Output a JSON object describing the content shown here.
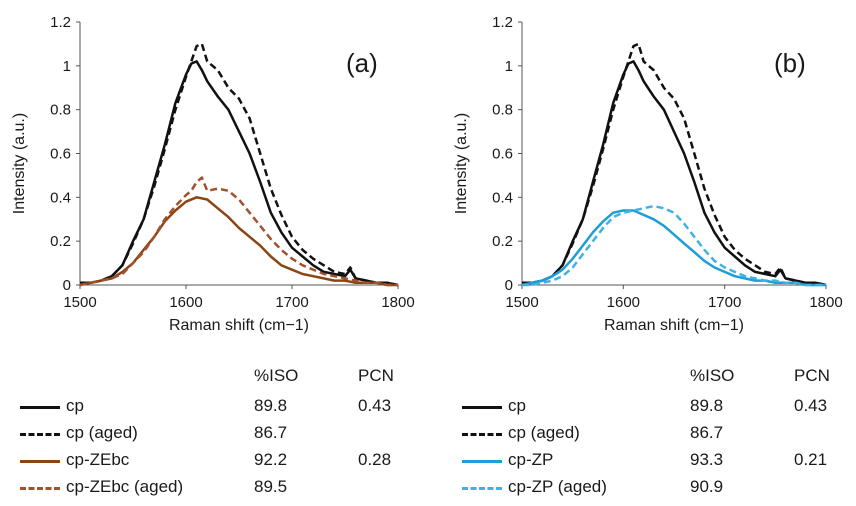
{
  "chart_data": [
    {
      "type": "line",
      "panel_label": "(a)",
      "xlabel": "Raman shift (cm−1)",
      "ylabel": "Intensity (a.u.)",
      "xlim": [
        1500,
        1800
      ],
      "ylim": [
        0,
        1.2
      ],
      "xticks": [
        1500,
        1600,
        1700,
        1800
      ],
      "yticks": [
        0,
        0.2,
        0.4,
        0.6,
        0.8,
        1,
        1.2
      ],
      "grid": false,
      "series": [
        {
          "name": "cp",
          "color": "#111111",
          "dash": "solid",
          "x": [
            1500,
            1510,
            1520,
            1530,
            1540,
            1550,
            1560,
            1570,
            1580,
            1590,
            1600,
            1605,
            1610,
            1615,
            1620,
            1630,
            1640,
            1650,
            1660,
            1670,
            1680,
            1690,
            1700,
            1710,
            1720,
            1730,
            1740,
            1750,
            1755,
            1760,
            1770,
            1780,
            1790,
            1800
          ],
          "y": [
            0.01,
            0.01,
            0.02,
            0.04,
            0.09,
            0.2,
            0.3,
            0.47,
            0.64,
            0.83,
            0.96,
            1.01,
            1.02,
            0.98,
            0.93,
            0.86,
            0.8,
            0.7,
            0.6,
            0.47,
            0.33,
            0.24,
            0.17,
            0.13,
            0.09,
            0.06,
            0.05,
            0.04,
            0.07,
            0.03,
            0.02,
            0.01,
            0.01,
            0.0
          ]
        },
        {
          "name": "cp (aged)",
          "color": "#111111",
          "dash": "dashed",
          "x": [
            1500,
            1510,
            1520,
            1530,
            1540,
            1550,
            1560,
            1570,
            1580,
            1590,
            1600,
            1605,
            1610,
            1615,
            1620,
            1630,
            1640,
            1650,
            1660,
            1670,
            1680,
            1690,
            1700,
            1710,
            1720,
            1730,
            1740,
            1750,
            1755,
            1760,
            1770,
            1780,
            1790,
            1800
          ],
          "y": [
            0.01,
            0.01,
            0.02,
            0.04,
            0.09,
            0.19,
            0.3,
            0.45,
            0.62,
            0.8,
            0.95,
            1.02,
            1.09,
            1.1,
            1.02,
            0.98,
            0.9,
            0.85,
            0.76,
            0.6,
            0.44,
            0.32,
            0.22,
            0.16,
            0.12,
            0.09,
            0.06,
            0.05,
            0.08,
            0.03,
            0.02,
            0.01,
            0.01,
            0.0
          ]
        },
        {
          "name": "cp-ZEbc",
          "color": "#8B4513",
          "dash": "solid",
          "x": [
            1500,
            1510,
            1520,
            1530,
            1540,
            1550,
            1560,
            1570,
            1580,
            1590,
            1600,
            1610,
            1620,
            1630,
            1640,
            1650,
            1660,
            1670,
            1680,
            1690,
            1700,
            1710,
            1720,
            1730,
            1740,
            1750,
            1760,
            1770,
            1780,
            1790,
            1800
          ],
          "y": [
            0.0,
            0.01,
            0.02,
            0.03,
            0.06,
            0.1,
            0.16,
            0.22,
            0.29,
            0.34,
            0.38,
            0.4,
            0.39,
            0.35,
            0.31,
            0.26,
            0.22,
            0.18,
            0.13,
            0.09,
            0.07,
            0.05,
            0.04,
            0.03,
            0.02,
            0.02,
            0.01,
            0.01,
            0.01,
            0.0,
            0.0
          ]
        },
        {
          "name": "cp-ZEbc (aged)",
          "color": "#A0522D",
          "dash": "dashed",
          "x": [
            1500,
            1510,
            1520,
            1530,
            1540,
            1550,
            1560,
            1570,
            1580,
            1590,
            1600,
            1605,
            1610,
            1615,
            1620,
            1630,
            1640,
            1650,
            1660,
            1670,
            1680,
            1690,
            1700,
            1710,
            1720,
            1730,
            1740,
            1750,
            1760,
            1770,
            1780,
            1790,
            1800
          ],
          "y": [
            0.0,
            0.01,
            0.02,
            0.03,
            0.05,
            0.1,
            0.15,
            0.22,
            0.3,
            0.36,
            0.41,
            0.43,
            0.47,
            0.49,
            0.43,
            0.44,
            0.43,
            0.39,
            0.33,
            0.27,
            0.21,
            0.16,
            0.12,
            0.09,
            0.07,
            0.05,
            0.04,
            0.03,
            0.02,
            0.01,
            0.01,
            0.0,
            0.0
          ]
        }
      ]
    },
    {
      "type": "line",
      "panel_label": "(b)",
      "xlabel": "Raman shift (cm−1)",
      "ylabel": "Intensity (a.u.)",
      "xlim": [
        1500,
        1800
      ],
      "ylim": [
        0,
        1.2
      ],
      "xticks": [
        1500,
        1600,
        1700,
        1800
      ],
      "yticks": [
        0,
        0.2,
        0.4,
        0.6,
        0.8,
        1,
        1.2
      ],
      "grid": false,
      "series": [
        {
          "name": "cp",
          "color": "#111111",
          "dash": "solid",
          "x": [
            1500,
            1510,
            1520,
            1530,
            1540,
            1550,
            1560,
            1570,
            1580,
            1590,
            1600,
            1605,
            1610,
            1615,
            1620,
            1630,
            1640,
            1650,
            1660,
            1670,
            1680,
            1690,
            1700,
            1710,
            1720,
            1730,
            1740,
            1750,
            1755,
            1760,
            1770,
            1780,
            1790,
            1800
          ],
          "y": [
            0.01,
            0.01,
            0.02,
            0.04,
            0.09,
            0.2,
            0.3,
            0.47,
            0.64,
            0.83,
            0.96,
            1.01,
            1.02,
            0.98,
            0.93,
            0.86,
            0.8,
            0.7,
            0.6,
            0.47,
            0.33,
            0.24,
            0.17,
            0.13,
            0.09,
            0.06,
            0.05,
            0.04,
            0.07,
            0.03,
            0.02,
            0.01,
            0.01,
            0.0
          ]
        },
        {
          "name": "cp (aged)",
          "color": "#111111",
          "dash": "dashed",
          "x": [
            1500,
            1510,
            1520,
            1530,
            1540,
            1550,
            1560,
            1570,
            1580,
            1590,
            1600,
            1605,
            1610,
            1615,
            1620,
            1630,
            1640,
            1650,
            1660,
            1670,
            1680,
            1690,
            1700,
            1710,
            1720,
            1730,
            1740,
            1750,
            1755,
            1760,
            1770,
            1780,
            1790,
            1800
          ],
          "y": [
            0.01,
            0.01,
            0.02,
            0.04,
            0.09,
            0.19,
            0.3,
            0.45,
            0.62,
            0.8,
            0.95,
            1.02,
            1.09,
            1.1,
            1.02,
            0.98,
            0.9,
            0.85,
            0.76,
            0.6,
            0.44,
            0.32,
            0.22,
            0.16,
            0.12,
            0.09,
            0.06,
            0.05,
            0.08,
            0.03,
            0.02,
            0.01,
            0.01,
            0.0
          ]
        },
        {
          "name": "cp-ZP",
          "color": "#1E9ED8",
          "dash": "solid",
          "x": [
            1500,
            1510,
            1520,
            1530,
            1540,
            1550,
            1560,
            1570,
            1580,
            1590,
            1600,
            1610,
            1620,
            1630,
            1640,
            1650,
            1660,
            1670,
            1680,
            1690,
            1700,
            1710,
            1720,
            1730,
            1740,
            1750,
            1760,
            1770,
            1780,
            1790,
            1800
          ],
          "y": [
            0.0,
            0.01,
            0.02,
            0.04,
            0.07,
            0.12,
            0.18,
            0.24,
            0.29,
            0.33,
            0.34,
            0.34,
            0.32,
            0.3,
            0.27,
            0.23,
            0.19,
            0.15,
            0.11,
            0.08,
            0.06,
            0.04,
            0.03,
            0.02,
            0.02,
            0.01,
            0.01,
            0.01,
            0.0,
            0.0,
            0.0
          ]
        },
        {
          "name": "cp-ZP (aged)",
          "color": "#3FB1E3",
          "dash": "dashed",
          "x": [
            1500,
            1510,
            1520,
            1530,
            1540,
            1550,
            1560,
            1570,
            1580,
            1590,
            1600,
            1610,
            1620,
            1630,
            1640,
            1650,
            1660,
            1670,
            1680,
            1690,
            1700,
            1710,
            1720,
            1730,
            1740,
            1750,
            1760,
            1770,
            1780,
            1790,
            1800
          ],
          "y": [
            0.0,
            0.0,
            0.01,
            0.02,
            0.04,
            0.08,
            0.14,
            0.2,
            0.26,
            0.31,
            0.33,
            0.34,
            0.35,
            0.36,
            0.35,
            0.33,
            0.28,
            0.22,
            0.16,
            0.11,
            0.08,
            0.06,
            0.04,
            0.03,
            0.02,
            0.02,
            0.01,
            0.01,
            0.0,
            0.0,
            0.0
          ]
        }
      ]
    }
  ],
  "legend_tables": [
    {
      "headers": {
        "iso": "%ISO",
        "pcn": "PCN"
      },
      "rows": [
        {
          "name": "cp",
          "iso": "89.8",
          "pcn": "0.43",
          "color": "#111111",
          "dash": "solid"
        },
        {
          "name": "cp (aged)",
          "iso": "86.7",
          "pcn": "",
          "color": "#111111",
          "dash": "dashed"
        },
        {
          "name": "cp-ZEbc",
          "iso": "92.2",
          "pcn": "0.28",
          "color": "#8B4513",
          "dash": "solid"
        },
        {
          "name": "cp-ZEbc (aged)",
          "iso": "89.5",
          "pcn": "",
          "color": "#A0522D",
          "dash": "dashed"
        }
      ]
    },
    {
      "headers": {
        "iso": "%ISO",
        "pcn": "PCN"
      },
      "rows": [
        {
          "name": "cp",
          "iso": "89.8",
          "pcn": "0.43",
          "color": "#111111",
          "dash": "solid"
        },
        {
          "name": "cp (aged)",
          "iso": "86.7",
          "pcn": "",
          "color": "#111111",
          "dash": "dashed"
        },
        {
          "name": "cp-ZP",
          "iso": "93.3",
          "pcn": "0.21",
          "color": "#1E9ED8",
          "dash": "solid"
        },
        {
          "name": "cp-ZP (aged)",
          "iso": "90.9",
          "pcn": "",
          "color": "#3FB1E3",
          "dash": "dashed"
        }
      ]
    }
  ]
}
